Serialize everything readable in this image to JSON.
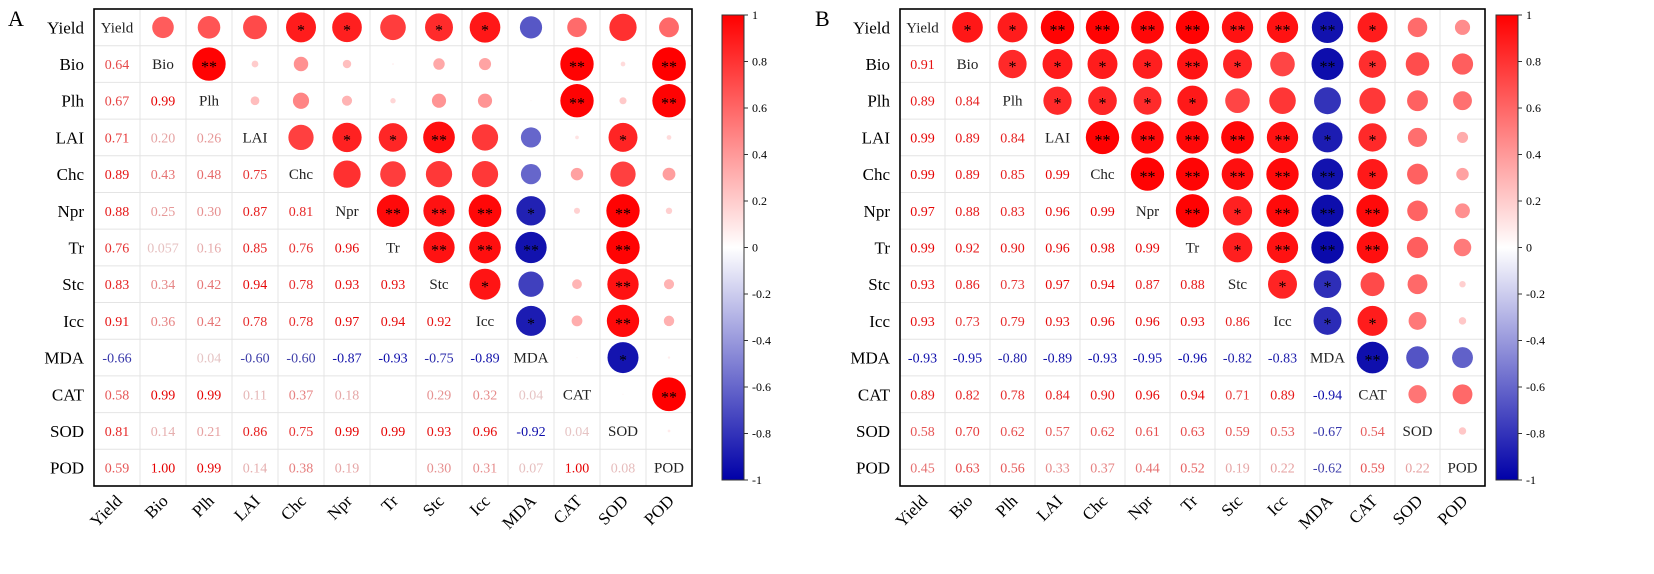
{
  "chart_data": [
    {
      "type": "heatmap",
      "panel_label": "A",
      "title": "",
      "variables": [
        "Yield",
        "Bio",
        "Plh",
        "LAI",
        "Chc",
        "Npr",
        "Tr",
        "Stc",
        "Icc",
        "MDA",
        "CAT",
        "SOD",
        "POD"
      ],
      "lower_values": [
        [],
        [
          0.64
        ],
        [
          0.67,
          0.99
        ],
        [
          0.71,
          0.2,
          0.26
        ],
        [
          0.89,
          0.43,
          0.48,
          0.75
        ],
        [
          0.88,
          0.25,
          0.3,
          0.87,
          0.81
        ],
        [
          0.76,
          0.057,
          0.16,
          0.85,
          0.76,
          0.96
        ],
        [
          0.83,
          0.34,
          0.42,
          0.94,
          0.78,
          0.93,
          0.93
        ],
        [
          0.91,
          0.36,
          0.42,
          0.78,
          0.78,
          0.97,
          0.94,
          0.92
        ],
        [
          -0.66,
          0.0,
          0.04,
          -0.6,
          -0.6,
          -0.87,
          -0.93,
          -0.75,
          -0.89
        ],
        [
          0.58,
          0.99,
          0.99,
          0.11,
          0.37,
          0.18,
          0.0,
          0.29,
          0.32,
          0.04
        ],
        [
          0.81,
          0.14,
          0.21,
          0.86,
          0.75,
          0.99,
          0.99,
          0.93,
          0.96,
          -0.92,
          0.04
        ],
        [
          0.59,
          1.0,
          0.99,
          0.14,
          0.38,
          0.19,
          0.0,
          0.3,
          0.31,
          0.07,
          1.0,
          0.08
        ]
      ],
      "lower_labels": [
        [],
        [
          "0.64"
        ],
        [
          "0.67",
          "0.99"
        ],
        [
          "0.71",
          "0.20",
          "0.26"
        ],
        [
          "0.89",
          "0.43",
          "0.48",
          "0.75"
        ],
        [
          "0.88",
          "0.25",
          "0.30",
          "0.87",
          "0.81"
        ],
        [
          "0.76",
          "0.057",
          "0.16",
          "0.85",
          "0.76",
          "0.96"
        ],
        [
          "0.83",
          "0.34",
          "0.42",
          "0.94",
          "0.78",
          "0.93",
          "0.93"
        ],
        [
          "0.91",
          "0.36",
          "0.42",
          "0.78",
          "0.78",
          "0.97",
          "0.94",
          "0.92"
        ],
        [
          "-0.66",
          "",
          "0.04",
          "-0.60",
          "-0.60",
          "-0.87",
          "-0.93",
          "-0.75",
          "-0.89"
        ],
        [
          "0.58",
          "0.99",
          "0.99",
          "0.11",
          "0.37",
          "0.18",
          "",
          "0.29",
          "0.32",
          "0.04"
        ],
        [
          "0.81",
          "0.14",
          "0.21",
          "0.86",
          "0.75",
          "0.99",
          "0.99",
          "0.93",
          "0.96",
          "-0.92",
          "0.04"
        ],
        [
          "0.59",
          "1.00",
          "0.99",
          "0.14",
          "0.38",
          "0.19",
          "",
          "0.30",
          "0.31",
          "0.07",
          "1.00",
          "0.08"
        ]
      ],
      "significance": [
        [
          "",
          "",
          "",
          "",
          "*",
          "*",
          "",
          "*",
          "*",
          "",
          "",
          "",
          ""
        ],
        [
          "",
          "",
          "**",
          "",
          "",
          "",
          "",
          "",
          "",
          "",
          "**",
          "",
          "**"
        ],
        [
          "",
          "",
          "",
          "",
          "",
          "",
          "",
          "",
          "",
          "",
          "**",
          "",
          "**"
        ],
        [
          "",
          "",
          "",
          "",
          "",
          "*",
          "*",
          "**",
          "",
          "",
          "",
          "*",
          ""
        ],
        [
          "",
          "",
          "",
          "",
          "",
          "",
          "",
          "",
          "",
          "",
          "",
          "",
          ""
        ],
        [
          "",
          "",
          "",
          "",
          "",
          "",
          "**",
          "**",
          "**",
          "*",
          "",
          "**",
          ""
        ],
        [
          "",
          "",
          "",
          "",
          "",
          "",
          "",
          "**",
          "**",
          "**",
          "",
          "**",
          ""
        ],
        [
          "",
          "",
          "",
          "",
          "",
          "",
          "",
          "",
          "*",
          "",
          "",
          "**",
          ""
        ],
        [
          "",
          "",
          "",
          "",
          "",
          "",
          "",
          "",
          "",
          "*",
          "",
          "**",
          ""
        ],
        [
          "",
          "",
          "",
          "",
          "",
          "",
          "",
          "",
          "",
          "",
          "",
          "*",
          ""
        ],
        [
          "",
          "",
          "",
          "",
          "",
          "",
          "",
          "",
          "",
          "",
          "",
          "",
          "**"
        ],
        [
          "",
          "",
          "",
          "",
          "",
          "",
          "",
          "",
          "",
          "",
          "",
          "",
          ""
        ],
        [
          "",
          "",
          "",
          "",
          "",
          "",
          "",
          "",
          "",
          "",
          "",
          "",
          ""
        ]
      ]
    },
    {
      "type": "heatmap",
      "panel_label": "B",
      "title": "",
      "variables": [
        "Yield",
        "Bio",
        "Plh",
        "LAI",
        "Chc",
        "Npr",
        "Tr",
        "Stc",
        "Icc",
        "MDA",
        "CAT",
        "SOD",
        "POD"
      ],
      "lower_values": [
        [],
        [
          0.91
        ],
        [
          0.89,
          0.84
        ],
        [
          0.99,
          0.89,
          0.84
        ],
        [
          0.99,
          0.89,
          0.85,
          0.99
        ],
        [
          0.97,
          0.88,
          0.83,
          0.96,
          0.99
        ],
        [
          0.99,
          0.92,
          0.9,
          0.96,
          0.98,
          0.99
        ],
        [
          0.93,
          0.86,
          0.73,
          0.97,
          0.94,
          0.87,
          0.88
        ],
        [
          0.93,
          0.73,
          0.79,
          0.93,
          0.96,
          0.96,
          0.93,
          0.86
        ],
        [
          -0.93,
          -0.95,
          -0.8,
          -0.89,
          -0.93,
          -0.95,
          -0.96,
          -0.82,
          -0.83
        ],
        [
          0.89,
          0.82,
          0.78,
          0.84,
          0.9,
          0.96,
          0.94,
          0.71,
          0.89,
          -0.94
        ],
        [
          0.58,
          0.7,
          0.62,
          0.57,
          0.62,
          0.61,
          0.63,
          0.59,
          0.53,
          -0.67,
          0.54
        ],
        [
          0.45,
          0.63,
          0.56,
          0.33,
          0.37,
          0.44,
          0.52,
          0.19,
          0.22,
          -0.62,
          0.59,
          0.22
        ]
      ],
      "lower_labels": [
        [],
        [
          "0.91"
        ],
        [
          "0.89",
          "0.84"
        ],
        [
          "0.99",
          "0.89",
          "0.84"
        ],
        [
          "0.99",
          "0.89",
          "0.85",
          "0.99"
        ],
        [
          "0.97",
          "0.88",
          "0.83",
          "0.96",
          "0.99"
        ],
        [
          "0.99",
          "0.92",
          "0.90",
          "0.96",
          "0.98",
          "0.99"
        ],
        [
          "0.93",
          "0.86",
          "0.73",
          "0.97",
          "0.94",
          "0.87",
          "0.88"
        ],
        [
          "0.93",
          "0.73",
          "0.79",
          "0.93",
          "0.96",
          "0.96",
          "0.93",
          "0.86"
        ],
        [
          "-0.93",
          "-0.95",
          "-0.80",
          "-0.89",
          "-0.93",
          "-0.95",
          "-0.96",
          "-0.82",
          "-0.83"
        ],
        [
          "0.89",
          "0.82",
          "0.78",
          "0.84",
          "0.90",
          "0.96",
          "0.94",
          "0.71",
          "0.89",
          "-0.94"
        ],
        [
          "0.58",
          "0.70",
          "0.62",
          "0.57",
          "0.62",
          "0.61",
          "0.63",
          "0.59",
          "0.53",
          "-0.67",
          "0.54"
        ],
        [
          "0.45",
          "0.63",
          "0.56",
          "0.33",
          "0.37",
          "0.44",
          "0.52",
          "0.19",
          "0.22",
          "-0.62",
          "0.59",
          "0.22"
        ]
      ],
      "significance": [
        [
          "",
          "*",
          "*",
          "**",
          "**",
          "**",
          "**",
          "**",
          "**",
          "**",
          "*",
          "",
          ""
        ],
        [
          "",
          "",
          "*",
          "*",
          "*",
          "*",
          "**",
          "*",
          "",
          "**",
          "*",
          "",
          ""
        ],
        [
          "",
          "",
          "",
          "*",
          "*",
          "*",
          "*",
          "",
          "",
          "",
          "",
          "",
          ""
        ],
        [
          "",
          "",
          "",
          "",
          "**",
          "**",
          "**",
          "**",
          "**",
          "*",
          "*",
          "",
          ""
        ],
        [
          "",
          "",
          "",
          "",
          "",
          "**",
          "**",
          "**",
          "**",
          "**",
          "*",
          "",
          ""
        ],
        [
          "",
          "",
          "",
          "",
          "",
          "",
          "**",
          "*",
          "**",
          "**",
          "**",
          "",
          ""
        ],
        [
          "",
          "",
          "",
          "",
          "",
          "",
          "",
          "*",
          "**",
          "**",
          "**",
          "",
          ""
        ],
        [
          "",
          "",
          "",
          "",
          "",
          "",
          "",
          "",
          "*",
          "*",
          "",
          "",
          ""
        ],
        [
          "",
          "",
          "",
          "",
          "",
          "",
          "",
          "",
          "",
          "*",
          "*",
          "",
          ""
        ],
        [
          "",
          "",
          "",
          "",
          "",
          "",
          "",
          "",
          "",
          "",
          "**",
          "",
          ""
        ],
        [
          "",
          "",
          "",
          "",
          "",
          "",
          "",
          "",
          "",
          "",
          "",
          "",
          ""
        ],
        [
          "",
          "",
          "",
          "",
          "",
          "",
          "",
          "",
          "",
          "",
          "",
          "",
          ""
        ],
        [
          "",
          "",
          "",
          "",
          "",
          "",
          "",
          "",
          "",
          "",
          "",
          "",
          ""
        ]
      ]
    }
  ],
  "colorbar": {
    "range": [
      -1,
      1
    ],
    "ticks": [
      "1",
      "0.8",
      "0.6",
      "0.4",
      "0.2",
      "0",
      "-0.2",
      "-0.4",
      "-0.6",
      "-0.8",
      "-1"
    ],
    "colors": {
      "positive": "#ff0000",
      "neutral": "#ffffff",
      "negative": "#0000a8"
    }
  }
}
